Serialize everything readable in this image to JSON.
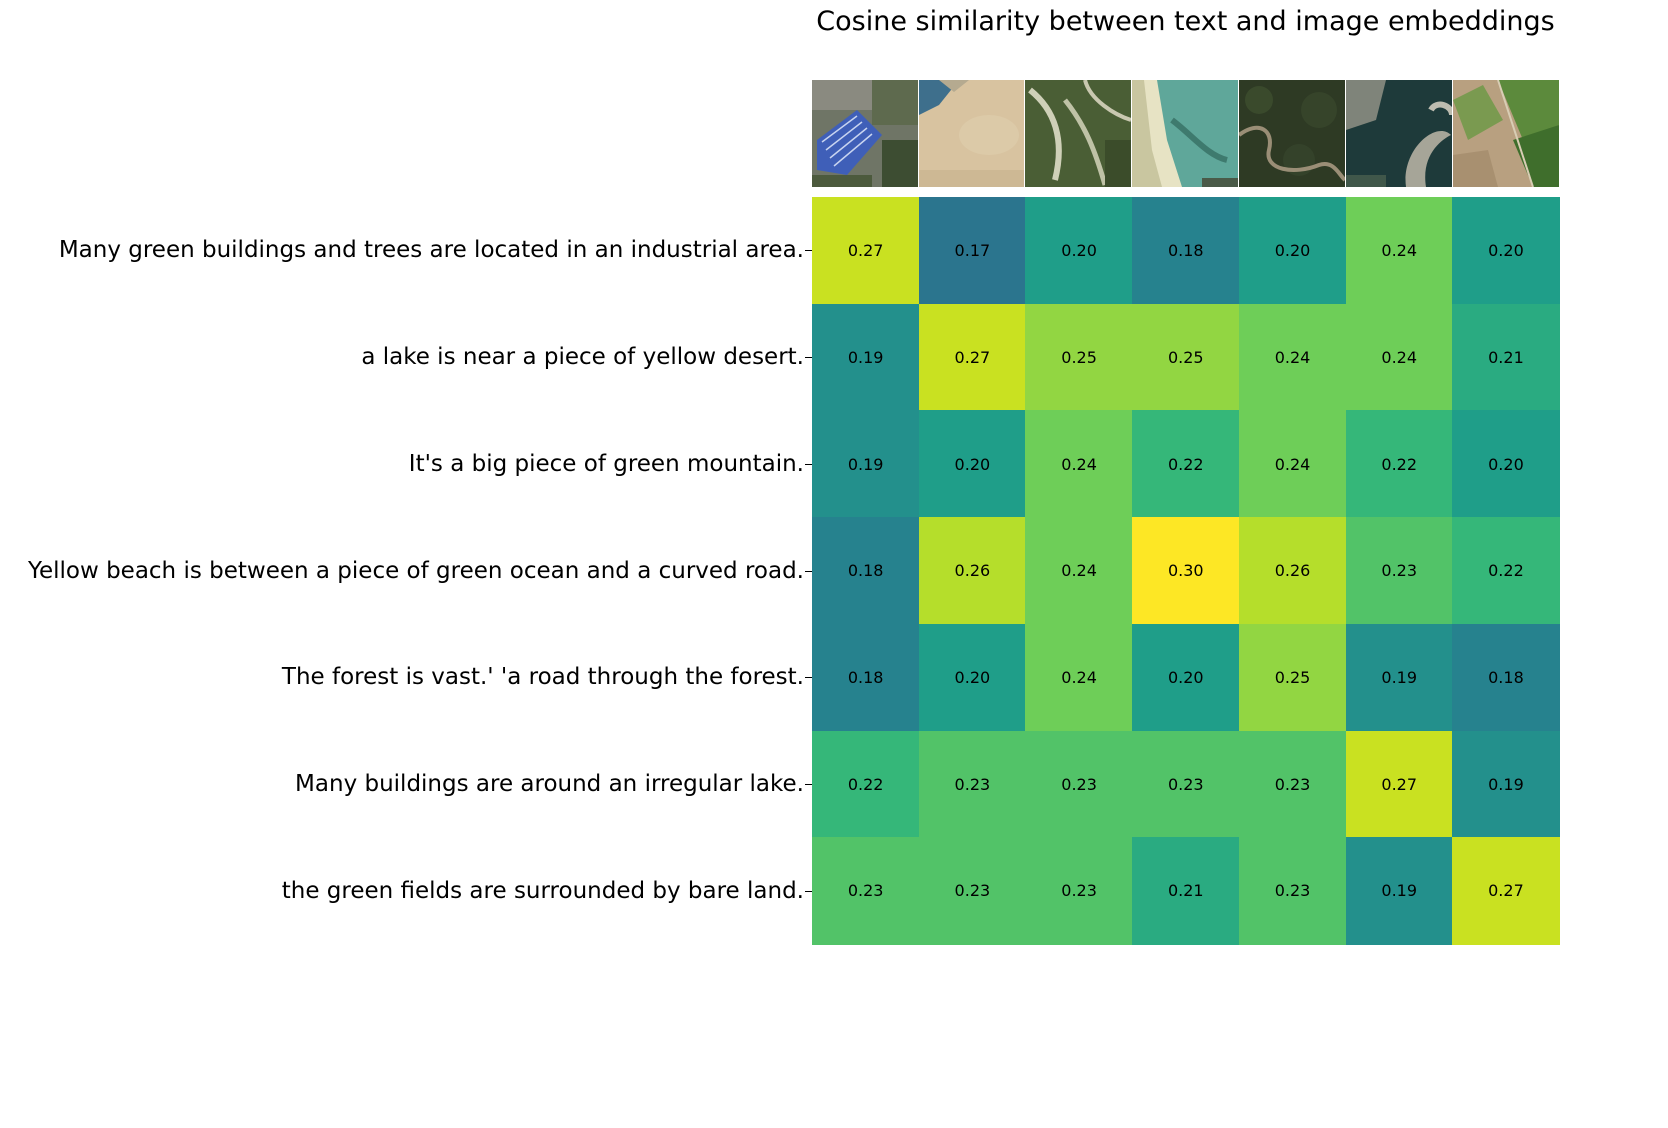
{
  "chart_data": {
    "type": "heatmap",
    "title": "Cosine similarity between text and image embeddings",
    "rows": [
      "Many green buildings and trees are located in an industrial area.",
      "a lake is near a piece of yellow desert.",
      "It's a big piece of green mountain.",
      "Yellow beach is between a piece of green ocean and a curved road.",
      "The forest is vast.' 'a road through the forest.",
      "Many buildings are around an irregular lake.",
      "the green fields are surrounded by bare land."
    ],
    "columns": [
      {
        "image_icon": "industrial-area-thumbnail"
      },
      {
        "image_icon": "desert-lake-thumbnail"
      },
      {
        "image_icon": "green-mountain-thumbnail"
      },
      {
        "image_icon": "beach-ocean-thumbnail"
      },
      {
        "image_icon": "forest-road-thumbnail"
      },
      {
        "image_icon": "lake-buildings-thumbnail"
      },
      {
        "image_icon": "green-fields-thumbnail"
      }
    ],
    "values": [
      [
        0.27,
        0.17,
        0.2,
        0.18,
        0.2,
        0.24,
        0.2
      ],
      [
        0.19,
        0.27,
        0.25,
        0.25,
        0.24,
        0.24,
        0.21
      ],
      [
        0.19,
        0.2,
        0.24,
        0.22,
        0.24,
        0.22,
        0.2
      ],
      [
        0.18,
        0.26,
        0.24,
        0.3,
        0.26,
        0.23,
        0.22
      ],
      [
        0.18,
        0.2,
        0.24,
        0.2,
        0.25,
        0.19,
        0.18
      ],
      [
        0.22,
        0.23,
        0.23,
        0.23,
        0.23,
        0.27,
        0.19
      ],
      [
        0.23,
        0.23,
        0.23,
        0.21,
        0.23,
        0.19,
        0.27
      ]
    ],
    "colormap": "viridis",
    "value_range": [
      0.1,
      0.3
    ],
    "value_format": "2 decimals"
  }
}
